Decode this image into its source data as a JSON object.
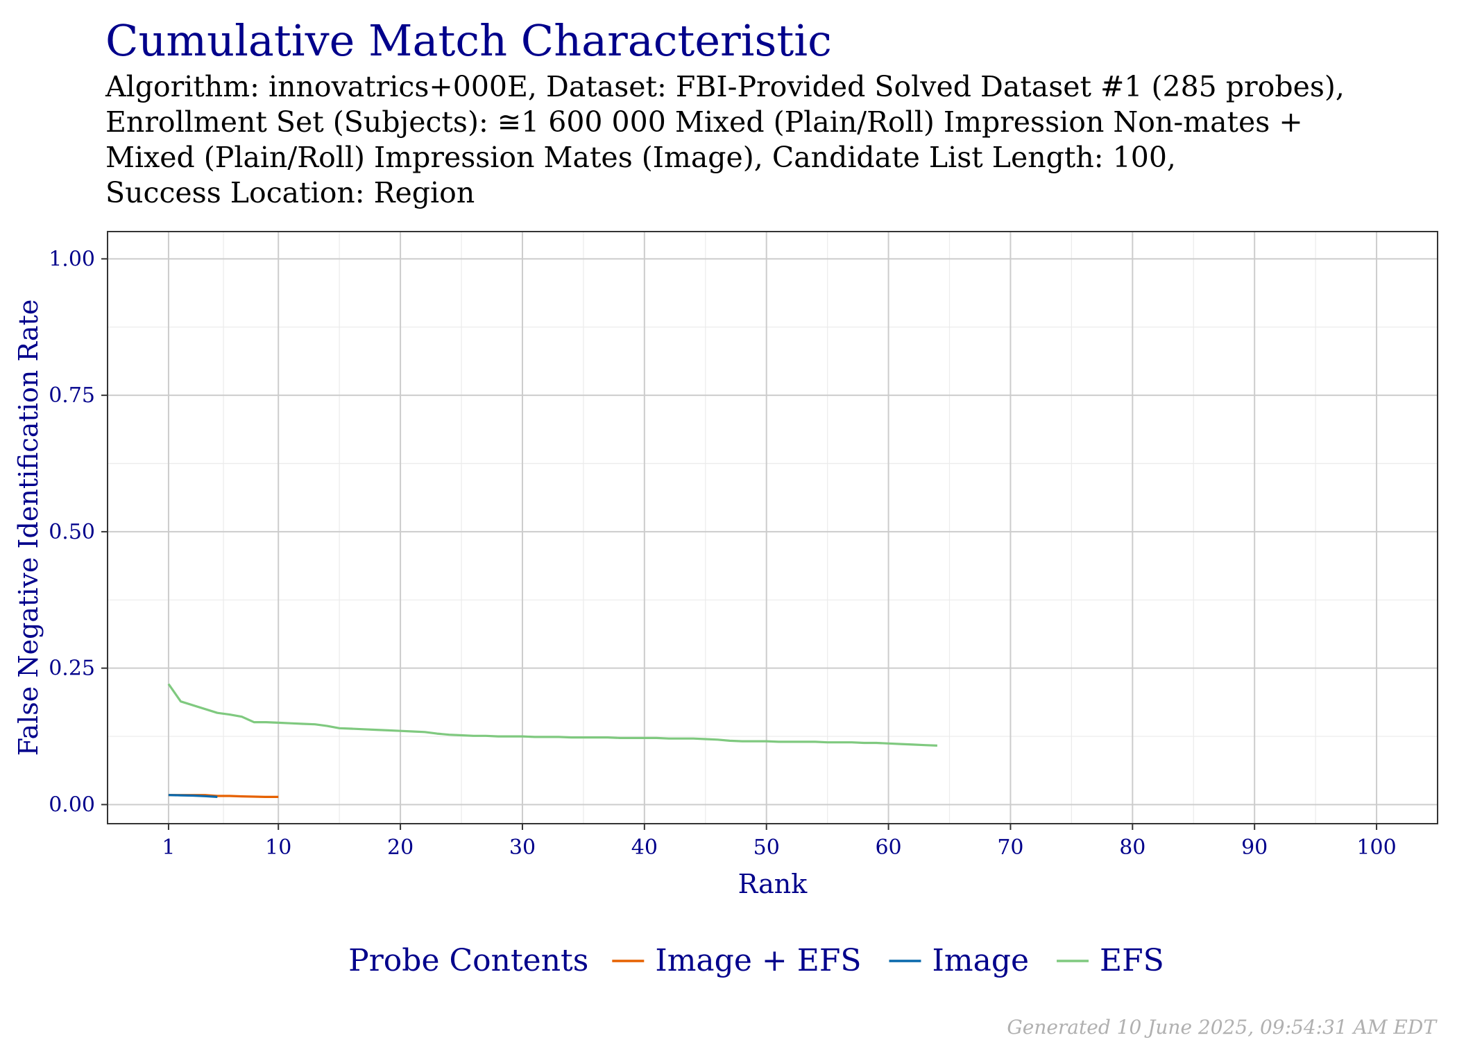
{
  "title": "Cumulative Match Characteristic",
  "subtitle_lines": [
    "Algorithm: innovatrics+000E, Dataset: FBI-Provided Solved Dataset #1 (285 probes),",
    "Enrollment Set (Subjects):  ≅1 600 000 Mixed (Plain/Roll) Impression Non-mates +",
    "Mixed (Plain/Roll) Impression Mates (Image), Candidate List Length: 100,",
    "Success Location: Region"
  ],
  "footer": "Generated 10 June 2025, 09:54:31 AM EDT",
  "colors": {
    "title": "#00008B",
    "axis_text": "#00008B",
    "grid_major": "#cccccc",
    "grid_minor": "#ebebeb"
  },
  "chart_data": {
    "type": "line",
    "xlabel": "Rank",
    "ylabel": "False Negative Identification Rate",
    "xlim": [
      -4,
      105
    ],
    "ylim": [
      -0.035,
      1.05
    ],
    "x_ticks": [
      1,
      10,
      20,
      30,
      40,
      50,
      60,
      70,
      80,
      90,
      100
    ],
    "x_tick_labels": [
      "1",
      "10",
      "20",
      "30",
      "40",
      "50",
      "60",
      "70",
      "80",
      "90",
      "100"
    ],
    "y_ticks": [
      0,
      0.25,
      0.5,
      0.75,
      1.0
    ],
    "y_tick_labels": [
      "0.00",
      "0.25",
      "0.50",
      "0.75",
      "1.00"
    ],
    "grid": true,
    "legend": {
      "title": "Probe Contents",
      "position": "bottom",
      "entries": [
        "Image + EFS",
        "Image",
        "EFS"
      ]
    },
    "series": [
      {
        "name": "Image + EFS",
        "color": "#E66100",
        "x": [
          1,
          2,
          3,
          4,
          5,
          6,
          7,
          8,
          9,
          10
        ],
        "y": [
          0.0175,
          0.0175,
          0.0175,
          0.0175,
          0.0158,
          0.0158,
          0.015,
          0.0145,
          0.014,
          0.014
        ]
      },
      {
        "name": "Image",
        "color": "#0868AC",
        "x": [
          1,
          2,
          3,
          4,
          5
        ],
        "y": [
          0.0175,
          0.017,
          0.0165,
          0.0155,
          0.014
        ]
      },
      {
        "name": "EFS",
        "color": "#7FC97F",
        "x": [
          1,
          2,
          3,
          4,
          5,
          6,
          7,
          8,
          9,
          10,
          11,
          12,
          13,
          14,
          15,
          16,
          17,
          18,
          19,
          20,
          21,
          22,
          23,
          24,
          25,
          26,
          27,
          28,
          29,
          30,
          31,
          32,
          33,
          34,
          35,
          36,
          37,
          38,
          39,
          40,
          41,
          42,
          43,
          44,
          45,
          46,
          47,
          48,
          49,
          50,
          51,
          52,
          53,
          54,
          55,
          56,
          57,
          58,
          59,
          60,
          61,
          62,
          63,
          64
        ],
        "y": [
          0.221,
          0.189,
          0.182,
          0.175,
          0.168,
          0.165,
          0.161,
          0.151,
          0.151,
          0.15,
          0.149,
          0.148,
          0.147,
          0.144,
          0.14,
          0.139,
          0.138,
          0.137,
          0.136,
          0.135,
          0.134,
          0.133,
          0.13,
          0.128,
          0.127,
          0.126,
          0.126,
          0.125,
          0.125,
          0.125,
          0.124,
          0.124,
          0.124,
          0.123,
          0.123,
          0.123,
          0.123,
          0.122,
          0.122,
          0.122,
          0.122,
          0.121,
          0.121,
          0.121,
          0.12,
          0.119,
          0.117,
          0.116,
          0.116,
          0.116,
          0.115,
          0.115,
          0.115,
          0.115,
          0.114,
          0.114,
          0.114,
          0.113,
          0.113,
          0.112,
          0.111,
          0.11,
          0.109,
          0.108
        ]
      }
    ]
  }
}
